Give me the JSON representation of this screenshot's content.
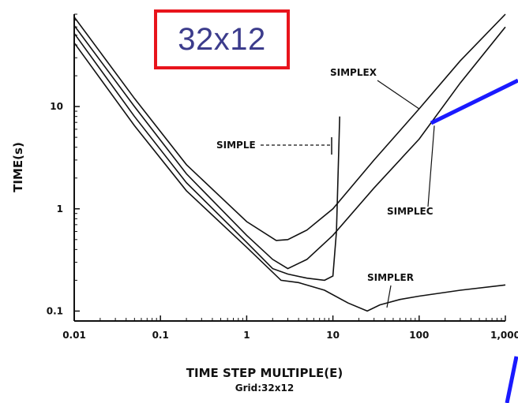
{
  "overlay": {
    "label": "32x12",
    "border_color": "#e8141c",
    "text_color": "#3c3c8c"
  },
  "pointer_color": "#1a1aff",
  "chart_data": {
    "type": "line",
    "xlabel": "TIME STEP MULTIPLE(E)",
    "subtitle": "Grid:32x12",
    "ylabel": "TIME(s)",
    "xscale": "log",
    "yscale": "log",
    "xlim": [
      0.01,
      1000
    ],
    "ylim": [
      0.08,
      80
    ],
    "xticks": [
      0.01,
      0.1,
      1,
      10,
      100,
      1000
    ],
    "xtick_labels": [
      "0.01",
      "0.1",
      "1",
      "10",
      "100",
      "1,000"
    ],
    "yticks": [
      0.1,
      1,
      10
    ],
    "ytick_labels": [
      "0.1",
      "1",
      "10"
    ],
    "grid": false,
    "series": [
      {
        "name": "SIMPLEX",
        "points": [
          [
            0.01,
            75
          ],
          [
            0.05,
            12
          ],
          [
            0.2,
            2.7
          ],
          [
            1,
            0.75
          ],
          [
            2.2,
            0.49
          ],
          [
            3,
            0.5
          ],
          [
            5,
            0.62
          ],
          [
            10,
            1.0
          ],
          [
            30,
            3.0
          ],
          [
            100,
            9.5
          ],
          [
            300,
            28
          ],
          [
            1000,
            80
          ]
        ]
      },
      {
        "name": "SIMPLEC",
        "points": [
          [
            0.01,
            62
          ],
          [
            0.05,
            10
          ],
          [
            0.2,
            2.2
          ],
          [
            1,
            0.55
          ],
          [
            2,
            0.32
          ],
          [
            3,
            0.26
          ],
          [
            5,
            0.32
          ],
          [
            10,
            0.55
          ],
          [
            30,
            1.6
          ],
          [
            100,
            4.8
          ],
          [
            300,
            17
          ],
          [
            1000,
            60
          ]
        ]
      },
      {
        "name": "SIMPLE",
        "points": [
          [
            0.01,
            52
          ],
          [
            0.05,
            8
          ],
          [
            0.2,
            1.8
          ],
          [
            1,
            0.47
          ],
          [
            2,
            0.26
          ],
          [
            3,
            0.23
          ],
          [
            5,
            0.21
          ],
          [
            8,
            0.2
          ],
          [
            10,
            0.22
          ],
          [
            11,
            0.6
          ],
          [
            12,
            8.0
          ]
        ]
      },
      {
        "name": "SIMPLER",
        "points": [
          [
            0.01,
            42
          ],
          [
            0.05,
            6.5
          ],
          [
            0.2,
            1.5
          ],
          [
            1,
            0.42
          ],
          [
            2.5,
            0.2
          ],
          [
            4,
            0.19
          ],
          [
            8,
            0.16
          ],
          [
            15,
            0.12
          ],
          [
            25,
            0.1
          ],
          [
            35,
            0.115
          ],
          [
            60,
            0.13
          ],
          [
            100,
            0.14
          ],
          [
            300,
            0.16
          ],
          [
            1000,
            0.18
          ]
        ]
      }
    ],
    "annotations": [
      {
        "text": "SIMPLEX",
        "series": "SIMPLEX"
      },
      {
        "text": "SIMPLEC",
        "series": "SIMPLEC"
      },
      {
        "text": "SIMPLE",
        "series": "SIMPLE"
      },
      {
        "text": "SIMPLER",
        "series": "SIMPLER"
      }
    ]
  }
}
